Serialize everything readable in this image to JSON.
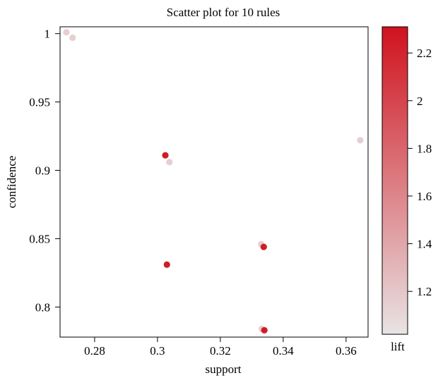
{
  "chart_data": {
    "type": "scatter",
    "title": "Scatter plot for 10 rules",
    "xlabel": "support",
    "ylabel": "confidence",
    "xlim": [
      0.269,
      0.367
    ],
    "ylim": [
      0.778,
      1.005
    ],
    "xticks": [
      0.28,
      0.3,
      0.32,
      0.34,
      0.36
    ],
    "xtick_labels": [
      "0.28",
      "0.3",
      "0.32",
      "0.34",
      "0.36"
    ],
    "yticks": [
      0.8,
      0.85,
      0.9,
      0.95,
      1.0
    ],
    "ytick_labels": [
      "0.8",
      "0.85",
      "0.9",
      "0.95",
      "1"
    ],
    "grid": false,
    "color_scale": {
      "label": "lift",
      "range": [
        1.02,
        2.31
      ],
      "ticks": [
        1.2,
        1.4,
        1.6,
        1.8,
        2.0,
        2.2
      ],
      "tick_labels": [
        "1.2",
        "1.4",
        "1.6",
        "1.8",
        "2",
        "2.2"
      ],
      "low_color": "#e8e4e4",
      "high_color": "#d0121e"
    },
    "points": [
      {
        "support": 0.271,
        "confidence": 1.001,
        "lift": 1.15
      },
      {
        "support": 0.273,
        "confidence": 0.997,
        "lift": 1.15
      },
      {
        "support": 0.3025,
        "confidence": 0.911,
        "lift": 2.25
      },
      {
        "support": 0.3038,
        "confidence": 0.906,
        "lift": 1.15
      },
      {
        "support": 0.3645,
        "confidence": 0.922,
        "lift": 1.15
      },
      {
        "support": 0.333,
        "confidence": 0.846,
        "lift": 1.15
      },
      {
        "support": 0.3338,
        "confidence": 0.844,
        "lift": 2.25
      },
      {
        "support": 0.303,
        "confidence": 0.831,
        "lift": 2.25
      },
      {
        "support": 0.3332,
        "confidence": 0.784,
        "lift": 1.15
      },
      {
        "support": 0.334,
        "confidence": 0.783,
        "lift": 2.25
      }
    ]
  }
}
